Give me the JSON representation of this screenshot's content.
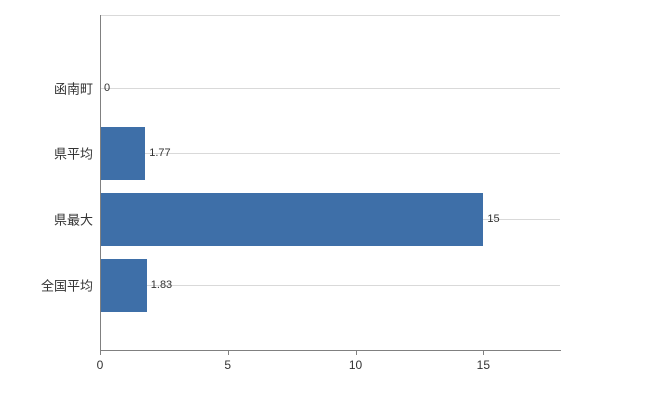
{
  "chart_data": {
    "type": "bar",
    "orientation": "horizontal",
    "title": "",
    "categories": [
      "函南町",
      "県平均",
      "県最大",
      "全国平均"
    ],
    "values": [
      0,
      1.77,
      15,
      1.83
    ],
    "value_labels": [
      "0",
      "1.77",
      "15",
      "1.83"
    ],
    "x_ticks": [
      0,
      5,
      10,
      15
    ],
    "x_tick_labels": [
      "0",
      "5",
      "10",
      "15"
    ],
    "xlim": [
      0,
      18
    ],
    "grid": true,
    "legend": "none",
    "bar_color": "#3e6fa8",
    "background": "#ffffff",
    "gridline_color": "#d9d9d9",
    "axis_color": "#808080",
    "text_color": "#333333"
  }
}
